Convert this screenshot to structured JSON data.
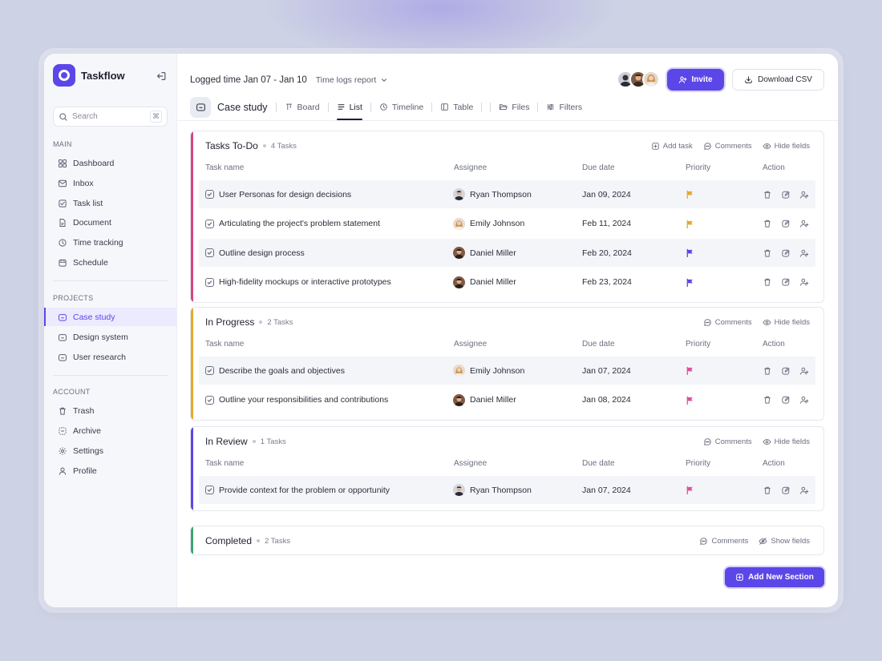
{
  "app": {
    "name": "Taskflow"
  },
  "search": {
    "placeholder": "Search",
    "shortcut": "⌘"
  },
  "sidebar": {
    "main_label": "MAIN",
    "main_items": [
      "Dashboard",
      "Inbox",
      "Task list",
      "Document",
      "Time tracking",
      "Schedule"
    ],
    "projects_label": "PROJECTS",
    "project_items": [
      "Case study",
      "Design system",
      "User research"
    ],
    "active_project": "Case study",
    "account_label": "ACCOUNT",
    "account_items": [
      "Trash",
      "Archive",
      "Settings",
      "Profile"
    ]
  },
  "header": {
    "logged_time": "Logged time Jan 07 - Jan 10",
    "report_label": "Time logs report",
    "invite_label": "Invite",
    "download_label": "Download CSV"
  },
  "project": {
    "title": "Case study",
    "tabs": [
      "Board",
      "List",
      "Timeline",
      "Table",
      "Files",
      "Filters"
    ],
    "active_tab": "List"
  },
  "columns": {
    "task": "Task name",
    "assignee": "Assignee",
    "due": "Due date",
    "priority": "Priority",
    "action": "Action"
  },
  "actions": {
    "add_task": "Add task",
    "comments": "Comments",
    "hide_fields": "Hide fields",
    "show_fields": "Show fields"
  },
  "sections": [
    {
      "title": "Tasks To-Do",
      "count": "4 Tasks",
      "color": "#d6457f",
      "tasks": [
        {
          "name": "User Personas for design decisions",
          "assignee": "Ryan Thompson",
          "due": "Jan 09, 2024",
          "priority_color": "#e5a92a"
        },
        {
          "name": "Articulating the project's problem statement",
          "assignee": "Emily Johnson",
          "due": "Feb 11, 2024",
          "priority_color": "#e5a92a"
        },
        {
          "name": "Outline design process",
          "assignee": "Daniel Miller",
          "due": "Feb 20, 2024",
          "priority_color": "#5b47e8"
        },
        {
          "name": "High-fidelity mockups or interactive prototypes",
          "assignee": "Daniel Miller",
          "due": "Feb 23, 2024",
          "priority_color": "#5b47e8"
        }
      ]
    },
    {
      "title": "In Progress",
      "count": "2 Tasks",
      "color": "#e5a92a",
      "tasks": [
        {
          "name": "Describe the goals and objectives",
          "assignee": "Emily Johnson",
          "due": "Jan 07, 2024",
          "priority_color": "#e0509a"
        },
        {
          "name": "Outline your responsibilities and contributions",
          "assignee": "Daniel Miller",
          "due": "Jan 08, 2024",
          "priority_color": "#e0509a"
        }
      ]
    },
    {
      "title": "In Review",
      "count": "1 Tasks",
      "color": "#5b47e8",
      "tasks": [
        {
          "name": "Provide context for the problem or opportunity",
          "assignee": "Ryan Thompson",
          "due": "Jan 07, 2024",
          "priority_color": "#e0509a"
        }
      ]
    },
    {
      "title": "Completed",
      "count": "2 Tasks",
      "color": "#3fa374",
      "tasks": []
    }
  ],
  "add_section_label": "Add New Section"
}
